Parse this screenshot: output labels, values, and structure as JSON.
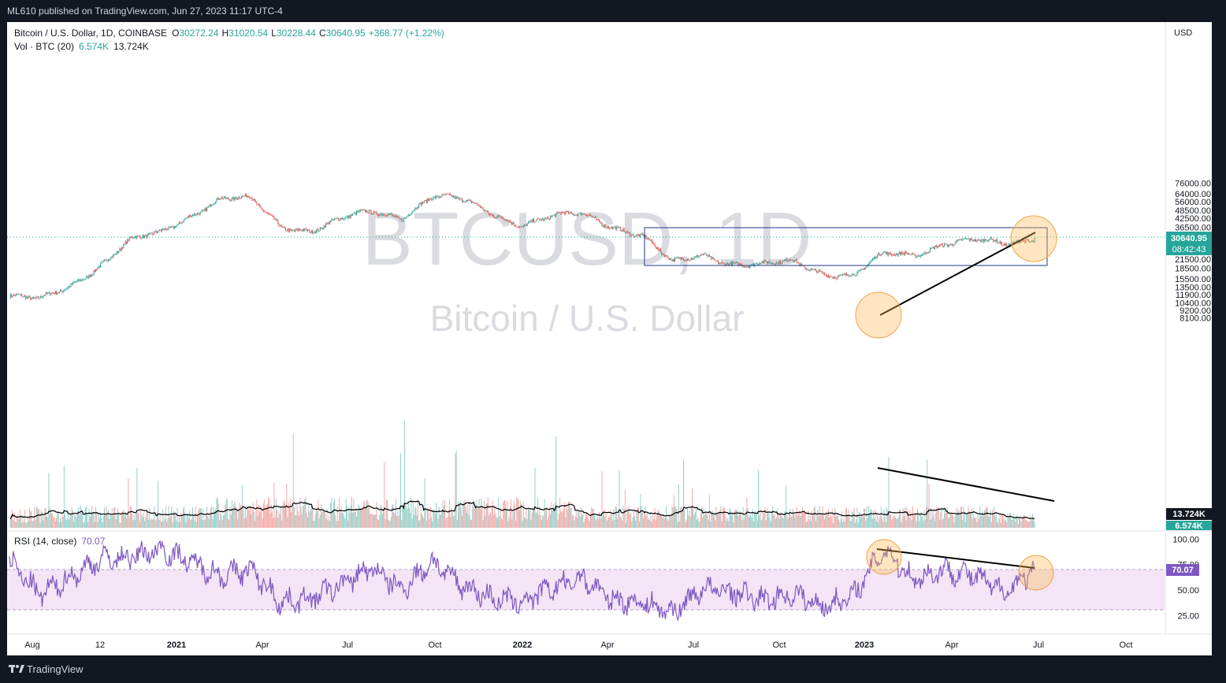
{
  "header": {
    "published": "ML610 published on TradingView.com, Jun 27, 2023 11:17 UTC-4"
  },
  "footer": {
    "brand": "TradingView"
  },
  "legend": {
    "symbol": "Bitcoin / U.S. Dollar, 1D, COINBASE",
    "o_label": "O",
    "o_value": "30272.24",
    "h_label": "H",
    "h_value": "31020.54",
    "l_label": "L",
    "l_value": "30228.44",
    "c_label": "C",
    "c_value": "30640.95",
    "change": "+368.77 (+1.22%)",
    "vol_label": "Vol · BTC (20)",
    "vol_value": "6.574K",
    "vol_ma_value": "13.724K",
    "rsi_label": "RSI (14, close)",
    "rsi_value": "70.07"
  },
  "watermark": {
    "symbol": "BTCUSD, 1D",
    "name": "Bitcoin / U.S. Dollar"
  },
  "price_axis": {
    "currency": "USD",
    "ticks": [
      "76000.00",
      "64000.00",
      "56000.00",
      "48500.00",
      "42500.00",
      "36500.00",
      "32500.00",
      "24500.00",
      "21500.00",
      "18500.00",
      "15500.00",
      "13500.00",
      "11900.00",
      "10400.00",
      "9200.00",
      "8100.00"
    ],
    "last_price": "30640.95",
    "countdown": "08:42:43",
    "vol_ma_label": "13.724K",
    "vol_label": "6.574K"
  },
  "rsi_axis": {
    "ticks": [
      "100.00",
      "75.00",
      "50.00",
      "25.00"
    ],
    "value_label": "70.07"
  },
  "time_axis": {
    "labels": [
      "Aug",
      "12",
      "2021",
      "Apr",
      "Jul",
      "Oct",
      "2022",
      "Apr",
      "Jul",
      "Oct",
      "2023",
      "Apr",
      "Jul",
      "Oct"
    ],
    "bold": [
      false,
      false,
      true,
      false,
      false,
      false,
      true,
      false,
      false,
      false,
      true,
      false,
      false,
      false
    ]
  },
  "colors": {
    "up": "#26a69a",
    "down": "#ef5350",
    "rsi": "#7e57c2",
    "rsi_band": "#f3e5f5",
    "volume_ma": "#000000",
    "range_box": "#1e3a8a",
    "highlight_circle": "#ffcc80"
  },
  "chart_data": [
    {
      "type": "candlestick",
      "title": "Bitcoin / U.S. Dollar, 1D, COINBASE",
      "scale": "log",
      "ylim": [
        8100,
        76000
      ],
      "x": [
        "2020-08",
        "2020-09",
        "2020-10",
        "2020-11",
        "2020-12",
        "2021-01",
        "2021-02",
        "2021-03",
        "2021-04",
        "2021-05",
        "2021-06",
        "2021-07",
        "2021-08",
        "2021-09",
        "2021-10",
        "2021-11",
        "2021-12",
        "2022-01",
        "2022-02",
        "2022-03",
        "2022-04",
        "2022-05",
        "2022-06",
        "2022-07",
        "2022-08",
        "2022-09",
        "2022-10",
        "2022-11",
        "2022-12",
        "2023-01",
        "2023-02",
        "2023-03",
        "2023-04",
        "2023-05",
        "2023-06"
      ],
      "close": [
        11600,
        10800,
        13800,
        19600,
        29000,
        33100,
        45200,
        58900,
        57800,
        37300,
        35000,
        41500,
        47100,
        43800,
        61300,
        57000,
        46300,
        38500,
        43200,
        45500,
        37700,
        31800,
        19900,
        23300,
        20100,
        19400,
        20500,
        17200,
        16500,
        23100,
        23100,
        28500,
        29200,
        27200,
        30640
      ],
      "high": [
        12400,
        12100,
        14100,
        19900,
        29300,
        41900,
        58300,
        61700,
        64900,
        59600,
        41300,
        42400,
        50400,
        52900,
        67000,
        69000,
        59100,
        47900,
        45800,
        48200,
        47400,
        40000,
        31900,
        24600,
        25200,
        22700,
        21000,
        21400,
        18400,
        23900,
        25200,
        29200,
        30900,
        29800,
        31400
      ],
      "low": [
        10600,
        9900,
        10400,
        13200,
        17600,
        28200,
        32400,
        45000,
        47100,
        30000,
        28800,
        29300,
        37300,
        39600,
        43300,
        53300,
        42000,
        33000,
        34400,
        37200,
        37600,
        26700,
        17600,
        18800,
        19600,
        18200,
        18300,
        15500,
        16300,
        16500,
        21400,
        19600,
        26900,
        25800,
        24800
      ],
      "annotations": {
        "last_price": 30640.95,
        "range_box": [
          26500,
          32300
        ],
        "circle_1": "2023-01 ~21000",
        "circle_2": "2023-06 ~30600"
      }
    },
    {
      "type": "bar",
      "title": "Vol · BTC (20)",
      "last_volume": "6.574K",
      "last_ma": "13.724K"
    },
    {
      "type": "line",
      "title": "RSI (14, close)",
      "ylim": [
        20,
        100
      ],
      "bands": [
        30,
        70
      ],
      "x": [
        "2020-08",
        "2020-09",
        "2020-10",
        "2020-11",
        "2020-12",
        "2021-01",
        "2021-02",
        "2021-03",
        "2021-04",
        "2021-05",
        "2021-06",
        "2021-07",
        "2021-08",
        "2021-09",
        "2021-10",
        "2021-11",
        "2021-12",
        "2022-01",
        "2022-02",
        "2022-03",
        "2022-04",
        "2022-05",
        "2022-06",
        "2022-07",
        "2022-08",
        "2022-09",
        "2022-10",
        "2022-11",
        "2022-12",
        "2023-01",
        "2023-02",
        "2023-03",
        "2023-04",
        "2023-05",
        "2023-06"
      ],
      "values": [
        78,
        45,
        62,
        80,
        82,
        90,
        78,
        64,
        70,
        38,
        42,
        55,
        72,
        50,
        78,
        55,
        42,
        38,
        52,
        62,
        40,
        38,
        28,
        52,
        48,
        40,
        46,
        34,
        44,
        90,
        60,
        70,
        64,
        48,
        70.07
      ],
      "last": 70.07
    }
  ]
}
